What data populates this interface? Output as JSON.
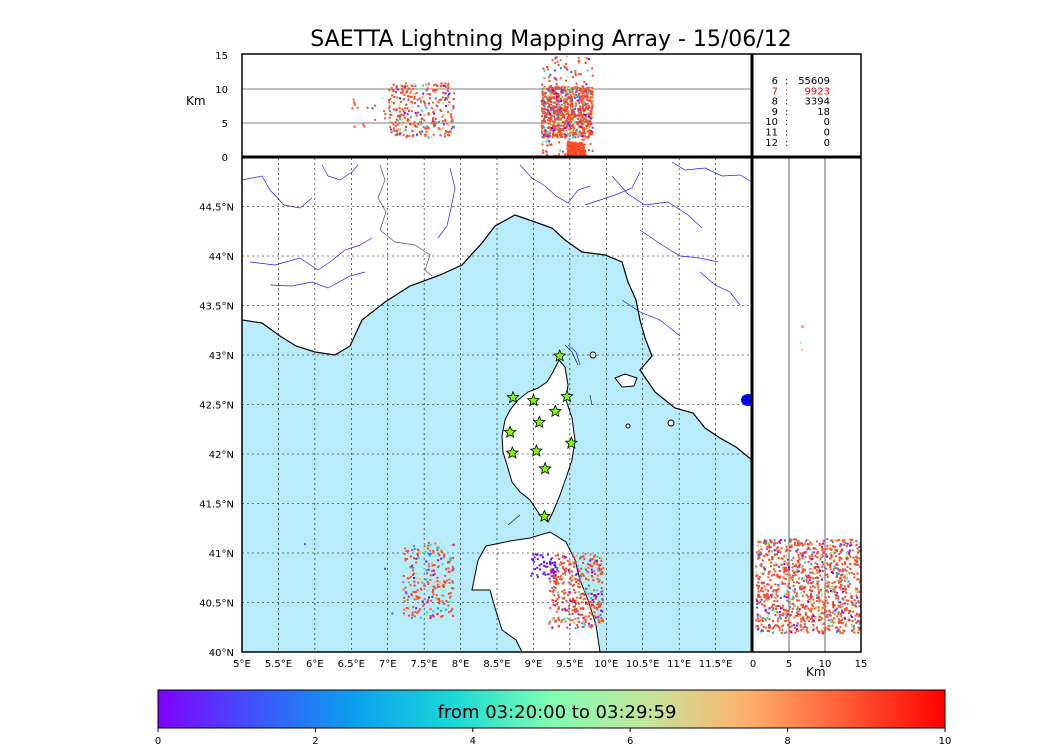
{
  "figure": {
    "title": "SAETTA Lightning Mapping Array - 15/06/12",
    "colorbar_label": "from 03:20:00 to 03:29:59"
  },
  "chart_data": [
    {
      "type": "scatter",
      "panel": "altitude-vs-longitude",
      "ylabel": "Km",
      "ylim": [
        0,
        15
      ],
      "yticks": [
        0,
        5,
        10,
        15
      ],
      "gridlines_y": [
        5,
        10
      ],
      "clusters": [
        {
          "name": "west-scatter",
          "lon": [
            6.5,
            7.2
          ],
          "alt": [
            4,
            9
          ],
          "n": 20
        },
        {
          "name": "lon-7.5-cluster",
          "lon": [
            7.0,
            7.9
          ],
          "alt": [
            3,
            11
          ],
          "n": 320
        },
        {
          "name": "lon-9.5-dense-cluster",
          "lon": [
            9.1,
            9.8
          ],
          "alt": [
            0.3,
            15
          ],
          "n": 1100
        }
      ]
    },
    {
      "type": "table",
      "panel": "station-counts",
      "rows": [
        {
          "k": "6",
          "v": "55609"
        },
        {
          "k": "7",
          "v": "9923",
          "color": "#ff0000"
        },
        {
          "k": "8",
          "v": "3394"
        },
        {
          "k": "9",
          "v": "18"
        },
        {
          "k": "10",
          "v": "0"
        },
        {
          "k": "11",
          "v": "0"
        },
        {
          "k": "12",
          "v": "0"
        }
      ]
    },
    {
      "type": "scatter",
      "panel": "plan-view-map",
      "xlim": [
        5,
        12
      ],
      "ylim": [
        40,
        45
      ],
      "xticks": [
        5,
        5.5,
        6,
        6.5,
        7,
        7.5,
        8,
        8.5,
        9,
        9.5,
        10,
        10.5,
        11,
        11.5
      ],
      "xtick_labels": [
        "5°E",
        "5.5°E",
        "6°E",
        "6.5°E",
        "7°E",
        "7.5°E",
        "8°E",
        "8.5°E",
        "9°E",
        "9.5°E",
        "10°E",
        "10.5°E",
        "11°E",
        "11.5°E"
      ],
      "yticks": [
        40,
        40.5,
        41,
        41.5,
        42,
        42.5,
        43,
        43.5,
        44,
        44.5
      ],
      "ytick_labels": [
        "40°N",
        "40.5°N",
        "41°N",
        "41.5°N",
        "42°N",
        "42.5°N",
        "43°N",
        "43.5°N",
        "44°N",
        "44.5°N"
      ],
      "grid": true,
      "sea_color": "#b9ecfb",
      "stations": [
        {
          "lon": 9.36,
          "lat": 42.99
        },
        {
          "lon": 8.72,
          "lat": 42.57
        },
        {
          "lon": 9.0,
          "lat": 42.54
        },
        {
          "lon": 9.46,
          "lat": 42.58
        },
        {
          "lon": 9.3,
          "lat": 42.43
        },
        {
          "lon": 9.08,
          "lat": 42.32
        },
        {
          "lon": 8.68,
          "lat": 42.22
        },
        {
          "lon": 9.52,
          "lat": 42.11
        },
        {
          "lon": 8.71,
          "lat": 42.01
        },
        {
          "lon": 9.04,
          "lat": 42.03
        },
        {
          "lon": 9.16,
          "lat": 41.85
        },
        {
          "lon": 9.15,
          "lat": 41.37
        }
      ],
      "clusters": [
        {
          "name": "west-sardinia-sea",
          "lon": [
            7.2,
            7.9
          ],
          "lat": [
            40.35,
            41.12
          ],
          "n": 260
        },
        {
          "name": "east-sardinia",
          "lon": [
            9.2,
            9.95
          ],
          "lat": [
            40.25,
            41.0
          ],
          "n": 420
        },
        {
          "name": "north-sardinia-violet",
          "lon": [
            8.95,
            9.3
          ],
          "lat": [
            40.75,
            41.0
          ],
          "n": 50
        }
      ]
    },
    {
      "type": "scatter",
      "panel": "latitude-vs-altitude",
      "xlabel": "Km",
      "xlim": [
        0,
        15
      ],
      "xticks": [
        0,
        5,
        10,
        15
      ],
      "gridlines_x": [
        5,
        10
      ],
      "clusters": [
        {
          "name": "south-band",
          "alt": [
            0.3,
            14.8
          ],
          "lat": [
            40.2,
            41.15
          ],
          "n": 1200
        },
        {
          "name": "isolated-north",
          "alt": [
            6.5,
            7.5
          ],
          "lat": [
            42.9,
            43.3
          ],
          "n": 3
        }
      ]
    },
    {
      "type": "colorbar",
      "panel": "time-colorbar",
      "range": [
        0,
        10
      ],
      "ticks": [
        0,
        2,
        4,
        6,
        8,
        10
      ],
      "colormap": "rainbow"
    }
  ]
}
